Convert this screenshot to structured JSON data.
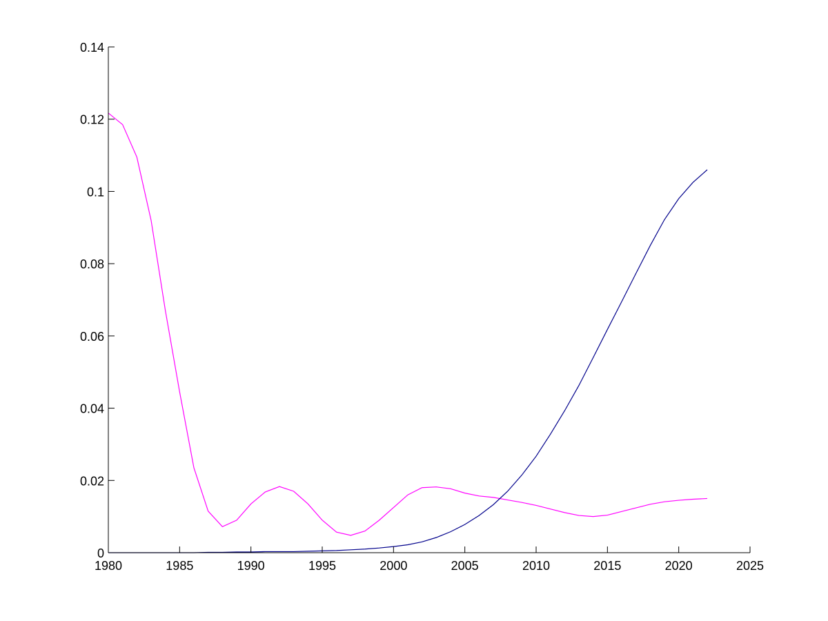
{
  "chart_data": {
    "type": "line",
    "title": "",
    "xlabel": "",
    "ylabel": "",
    "xlim": [
      1980,
      2025
    ],
    "ylim": [
      0,
      0.14
    ],
    "x_ticks": [
      1980,
      1985,
      1990,
      1995,
      2000,
      2005,
      2010,
      2015,
      2020,
      2025
    ],
    "y_ticks": [
      0,
      0.02,
      0.04,
      0.06,
      0.08,
      0.1,
      0.12,
      0.14
    ],
    "x_tick_labels": [
      "1980",
      "1985",
      "1990",
      "1995",
      "2000",
      "2005",
      "2010",
      "2015",
      "2020",
      "2025"
    ],
    "y_tick_labels": [
      "0",
      "0.02",
      "0.04",
      "0.06",
      "0.08",
      "0.1",
      "0.12",
      "0.14"
    ],
    "grid": false,
    "legend": "none",
    "series": [
      {
        "color": "#ff00ff",
        "x": [
          1980,
          1981,
          1982,
          1983,
          1984,
          1985,
          1986,
          1987,
          1988,
          1989,
          1990,
          1991,
          1992,
          1993,
          1994,
          1995,
          1996,
          1997,
          1998,
          1999,
          2000,
          2001,
          2002,
          2003,
          2004,
          2005,
          2006,
          2007,
          2008,
          2009,
          2010,
          2011,
          2012,
          2013,
          2014,
          2015,
          2016,
          2017,
          2018,
          2019,
          2020,
          2021,
          2022
        ],
        "y": [
          0.1217,
          0.1185,
          0.1095,
          0.092,
          0.067,
          0.0445,
          0.0235,
          0.0115,
          0.0072,
          0.009,
          0.0135,
          0.0168,
          0.0183,
          0.017,
          0.0135,
          0.009,
          0.0057,
          0.0048,
          0.006,
          0.009,
          0.0125,
          0.016,
          0.018,
          0.0182,
          0.0177,
          0.0165,
          0.0157,
          0.0153,
          0.0146,
          0.0139,
          0.0131,
          0.0121,
          0.0111,
          0.0103,
          0.01,
          0.0104,
          0.0114,
          0.0124,
          0.0134,
          0.0141,
          0.0145,
          0.0148,
          0.015
        ]
      },
      {
        "color": "#00008b",
        "x": [
          1980,
          1981,
          1982,
          1983,
          1984,
          1985,
          1986,
          1987,
          1988,
          1989,
          1990,
          1991,
          1992,
          1993,
          1994,
          1995,
          1996,
          1997,
          1998,
          1999,
          2000,
          2001,
          2002,
          2003,
          2004,
          2005,
          2006,
          2007,
          2008,
          2009,
          2010,
          2011,
          2012,
          2013,
          2014,
          2015,
          2016,
          2017,
          2018,
          2019,
          2020,
          2021,
          2022
        ],
        "y": [
          0.0,
          0.0,
          0.0,
          0.0,
          0.0,
          0.0,
          0.0,
          0.0001,
          0.0001,
          0.0002,
          0.0002,
          0.0003,
          0.0003,
          0.0003,
          0.0004,
          0.0005,
          0.0006,
          0.0008,
          0.001,
          0.0013,
          0.0017,
          0.0022,
          0.003,
          0.0042,
          0.0058,
          0.0078,
          0.0103,
          0.0133,
          0.017,
          0.0215,
          0.0267,
          0.0328,
          0.0393,
          0.0463,
          0.054,
          0.0618,
          0.0695,
          0.0773,
          0.085,
          0.0922,
          0.098,
          0.1025,
          0.106
        ]
      }
    ]
  }
}
